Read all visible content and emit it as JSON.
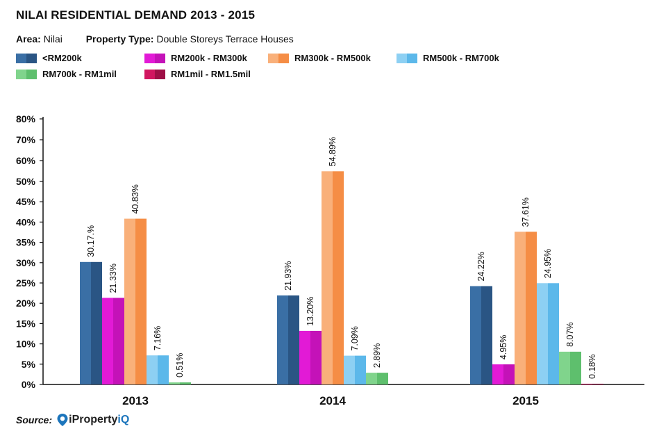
{
  "header": {
    "title": "NILAI RESIDENTIAL DEMAND 2013 - 2015",
    "area_label": "Area:",
    "area_value": "Nilai",
    "property_type_label": "Property Type:",
    "property_type_value": "Double Storeys Terrace Houses"
  },
  "footer": {
    "source_label": "Source:",
    "brand_main": "iProperty",
    "brand_suffix": "iQ"
  },
  "chart_data": {
    "type": "bar",
    "title": "NILAI RESIDENTIAL DEMAND 2013 - 2015",
    "categories": [
      "2013",
      "2014",
      "2015"
    ],
    "ylim": [
      0,
      80
    ],
    "yticks": [
      0,
      5,
      10,
      15,
      20,
      25,
      30,
      35,
      40,
      45,
      50,
      60,
      70,
      80
    ],
    "ytick_labels": [
      "0%",
      "5%",
      "10%",
      "15%",
      "20%",
      "25%",
      "30%",
      "35%",
      "40%",
      "45%",
      "50%",
      "60%",
      "70%",
      "80%"
    ],
    "grid": false,
    "legend_position": "top-left",
    "series": [
      {
        "name": "<RM200k",
        "color_light": "#3a6fa5",
        "color_dark": "#2a5584",
        "values": [
          30.17,
          21.93,
          24.22
        ],
        "labels": [
          "30.17.%",
          "21.93%",
          "24.22%"
        ]
      },
      {
        "name": "RM200k - RM300k",
        "color_light": "#e21ad6",
        "color_dark": "#c412b8",
        "values": [
          21.33,
          13.2,
          4.95
        ],
        "labels": [
          "21.33%",
          "13.20%",
          "4.95%"
        ]
      },
      {
        "name": "RM300k - RM500k",
        "color_light": "#f9b07a",
        "color_dark": "#f58d45",
        "values": [
          40.83,
          54.89,
          37.61
        ],
        "labels": [
          "40.83%",
          "54.89%",
          "37.61%"
        ]
      },
      {
        "name": "RM500k - RM700k",
        "color_light": "#8dd0f3",
        "color_dark": "#5cb8ea",
        "values": [
          7.16,
          7.09,
          24.95
        ],
        "labels": [
          "7.16%",
          "7.09%",
          "24.95%"
        ]
      },
      {
        "name": "RM700k - RM1mil",
        "color_light": "#80d48c",
        "color_dark": "#5ebf6d",
        "values": [
          0.51,
          2.89,
          8.07
        ],
        "labels": [
          "0.51%",
          "2.89%",
          "8.07%"
        ]
      },
      {
        "name": "RM1mil - RM1.5mil",
        "color_light": "#d11660",
        "color_dark": "#9e0f46",
        "values": [
          0,
          0,
          0.18
        ],
        "labels": [
          "",
          "",
          "0.18%"
        ]
      }
    ]
  }
}
